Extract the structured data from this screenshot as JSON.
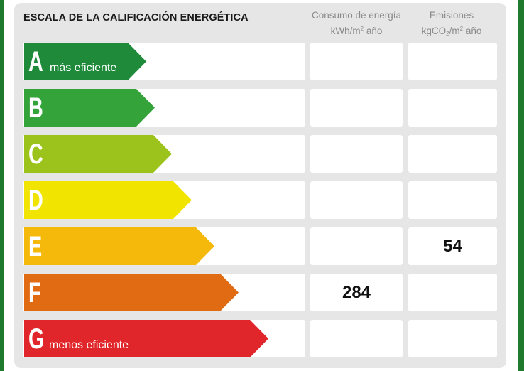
{
  "title": "ESCALA DE LA CALIFICACIÓN ENERGÉTICA",
  "columns": {
    "consumo": {
      "line1": "Consumo de energía",
      "unit_pre": "kWh/m",
      "unit_sup": "2",
      "unit_post": " año"
    },
    "emisiones": {
      "line1": "Emisiones",
      "unit_pre": "kgCO",
      "unit_sub": "2",
      "unit_post": "/m",
      "unit_sup": "2",
      "unit_post2": " año"
    }
  },
  "classes": [
    {
      "letter": "A",
      "label": "más eficiente",
      "color": "#1e8a3a",
      "consumo": "",
      "emisiones": ""
    },
    {
      "letter": "B",
      "label": "",
      "color": "#34a33a",
      "consumo": "",
      "emisiones": ""
    },
    {
      "letter": "C",
      "label": "",
      "color": "#9cc31c",
      "consumo": "",
      "emisiones": ""
    },
    {
      "letter": "D",
      "label": "",
      "color": "#f0e400",
      "consumo": "",
      "emisiones": ""
    },
    {
      "letter": "E",
      "label": "",
      "color": "#f4b90a",
      "consumo": "",
      "emisiones": "54"
    },
    {
      "letter": "F",
      "label": "",
      "color": "#e06b12",
      "consumo": "284",
      "emisiones": ""
    },
    {
      "letter": "G",
      "label": "menos eficiente",
      "color": "#e0262a",
      "consumo": "",
      "emisiones": ""
    }
  ]
}
